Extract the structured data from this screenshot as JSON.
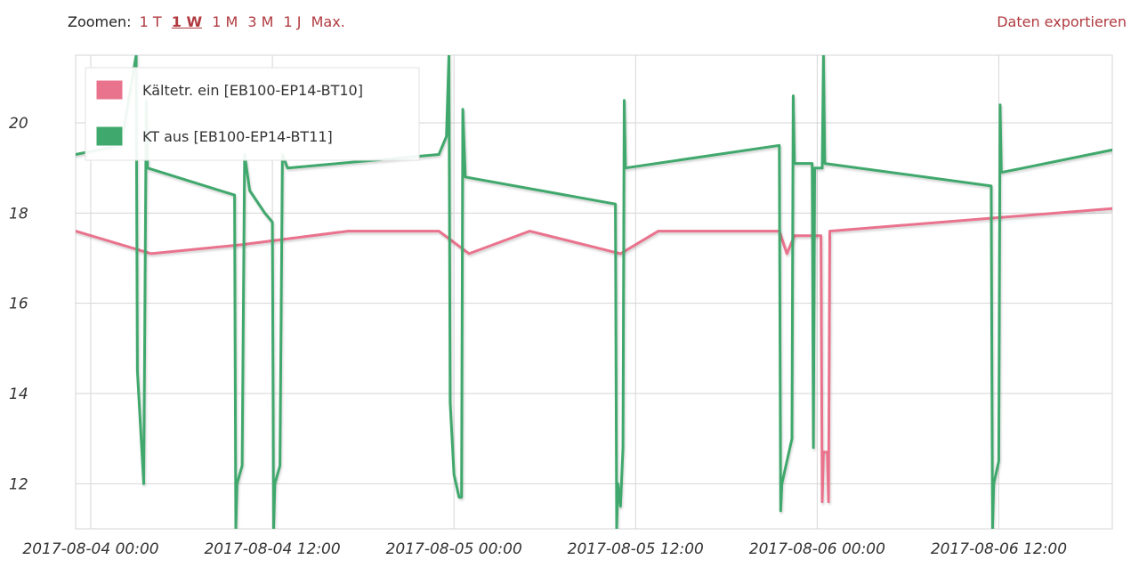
{
  "toolbar": {
    "zoom_label": "Zoomen:",
    "zoom_options": [
      "1 T",
      "1 W",
      "1 M",
      "3 M",
      "1 J",
      "Max."
    ],
    "active_zoom": "1 W",
    "export_label": "Daten exportieren"
  },
  "colors": {
    "series1": "#e9738d",
    "series2": "#3fa86c",
    "link": "#b0393f",
    "grid": "#d6d6d6"
  },
  "chart_data": {
    "type": "line",
    "ylim": [
      11,
      21.5
    ],
    "yticks": [
      12,
      14,
      16,
      18,
      20
    ],
    "ytick_labels": [
      "12",
      "14",
      "16",
      "18",
      "20"
    ],
    "xlim": [
      "2017-08-03 23:00",
      "2017-08-06 19:30"
    ],
    "xticks": [
      "2017-08-04 00:00",
      "2017-08-04 12:00",
      "2017-08-05 00:00",
      "2017-08-05 12:00",
      "2017-08-06 00:00",
      "2017-08-06 12:00"
    ],
    "grid": true,
    "legend_position": "top-left",
    "series": [
      {
        "name": "Kältetr. ein [EB100-EP14-BT10]",
        "points": [
          [
            "2017-08-03 23:00",
            17.6
          ],
          [
            "2017-08-04 04:00",
            17.1
          ],
          [
            "2017-08-04 10:00",
            17.3
          ],
          [
            "2017-08-04 17:00",
            17.6
          ],
          [
            "2017-08-04 23:00",
            17.6
          ],
          [
            "2017-08-05 01:00",
            17.1
          ],
          [
            "2017-08-05 05:00",
            17.6
          ],
          [
            "2017-08-05 11:00",
            17.1
          ],
          [
            "2017-08-05 13:30",
            17.6
          ],
          [
            "2017-08-05 21:30",
            17.6
          ],
          [
            "2017-08-05 22:00",
            17.1
          ],
          [
            "2017-08-05 22:30",
            17.5
          ],
          [
            "2017-08-06 00:15",
            17.5
          ],
          [
            "2017-08-06 00:20",
            11.6
          ],
          [
            "2017-08-06 00:25",
            12.7
          ],
          [
            "2017-08-06 00:40",
            12.7
          ],
          [
            "2017-08-06 00:45",
            11.6
          ],
          [
            "2017-08-06 00:50",
            17.6
          ],
          [
            "2017-08-06 12:00",
            17.9
          ],
          [
            "2017-08-06 19:30",
            18.1
          ]
        ]
      },
      {
        "name": "KT aus [EB100-EP14-BT11]",
        "points": [
          [
            "2017-08-03 23:00",
            19.3
          ],
          [
            "2017-08-04 02:00",
            19.5
          ],
          [
            "2017-08-04 03:00",
            21.5
          ],
          [
            "2017-08-04 03:05",
            14.5
          ],
          [
            "2017-08-04 03:30",
            12.0
          ],
          [
            "2017-08-04 03:40",
            20.5
          ],
          [
            "2017-08-04 03:45",
            19.0
          ],
          [
            "2017-08-04 09:30",
            18.4
          ],
          [
            "2017-08-04 09:35",
            11.0
          ],
          [
            "2017-08-04 09:40",
            12.0
          ],
          [
            "2017-08-04 10:00",
            12.4
          ],
          [
            "2017-08-04 10:10",
            19.3
          ],
          [
            "2017-08-04 10:30",
            18.5
          ],
          [
            "2017-08-04 11:30",
            18.0
          ],
          [
            "2017-08-04 12:00",
            17.8
          ],
          [
            "2017-08-04 12:05",
            11.0
          ],
          [
            "2017-08-04 12:10",
            12.0
          ],
          [
            "2017-08-04 12:30",
            12.4
          ],
          [
            "2017-08-04 12:40",
            19.3
          ],
          [
            "2017-08-04 13:00",
            19.0
          ],
          [
            "2017-08-04 23:00",
            19.3
          ],
          [
            "2017-08-04 23:30",
            19.7
          ],
          [
            "2017-08-04 23:40",
            21.5
          ],
          [
            "2017-08-04 23:45",
            13.8
          ],
          [
            "2017-08-05 00:00",
            12.2
          ],
          [
            "2017-08-05 00:20",
            11.7
          ],
          [
            "2017-08-05 00:30",
            11.7
          ],
          [
            "2017-08-05 00:35",
            20.3
          ],
          [
            "2017-08-05 00:45",
            18.8
          ],
          [
            "2017-08-05 10:40",
            18.2
          ],
          [
            "2017-08-05 10:45",
            11.0
          ],
          [
            "2017-08-05 10:50",
            12.0
          ],
          [
            "2017-08-05 11:00",
            11.5
          ],
          [
            "2017-08-05 11:10",
            12.8
          ],
          [
            "2017-08-05 11:15",
            20.5
          ],
          [
            "2017-08-05 11:20",
            19.0
          ],
          [
            "2017-08-05 21:30",
            19.5
          ],
          [
            "2017-08-05 21:35",
            11.4
          ],
          [
            "2017-08-05 21:40",
            12.0
          ],
          [
            "2017-08-05 22:20",
            13.0
          ],
          [
            "2017-08-05 22:25",
            20.6
          ],
          [
            "2017-08-05 22:30",
            19.1
          ],
          [
            "2017-08-05 23:40",
            19.1
          ],
          [
            "2017-08-05 23:45",
            12.8
          ],
          [
            "2017-08-05 23:50",
            19.0
          ],
          [
            "2017-08-06 00:20",
            19.0
          ],
          [
            "2017-08-06 00:25",
            21.5
          ],
          [
            "2017-08-06 00:30",
            19.1
          ],
          [
            "2017-08-06 11:30",
            18.6
          ],
          [
            "2017-08-06 11:35",
            11.0
          ],
          [
            "2017-08-06 11:40",
            12.0
          ],
          [
            "2017-08-06 12:00",
            12.5
          ],
          [
            "2017-08-06 12:05",
            20.4
          ],
          [
            "2017-08-06 12:10",
            18.9
          ],
          [
            "2017-08-06 19:30",
            19.4
          ]
        ]
      }
    ]
  }
}
